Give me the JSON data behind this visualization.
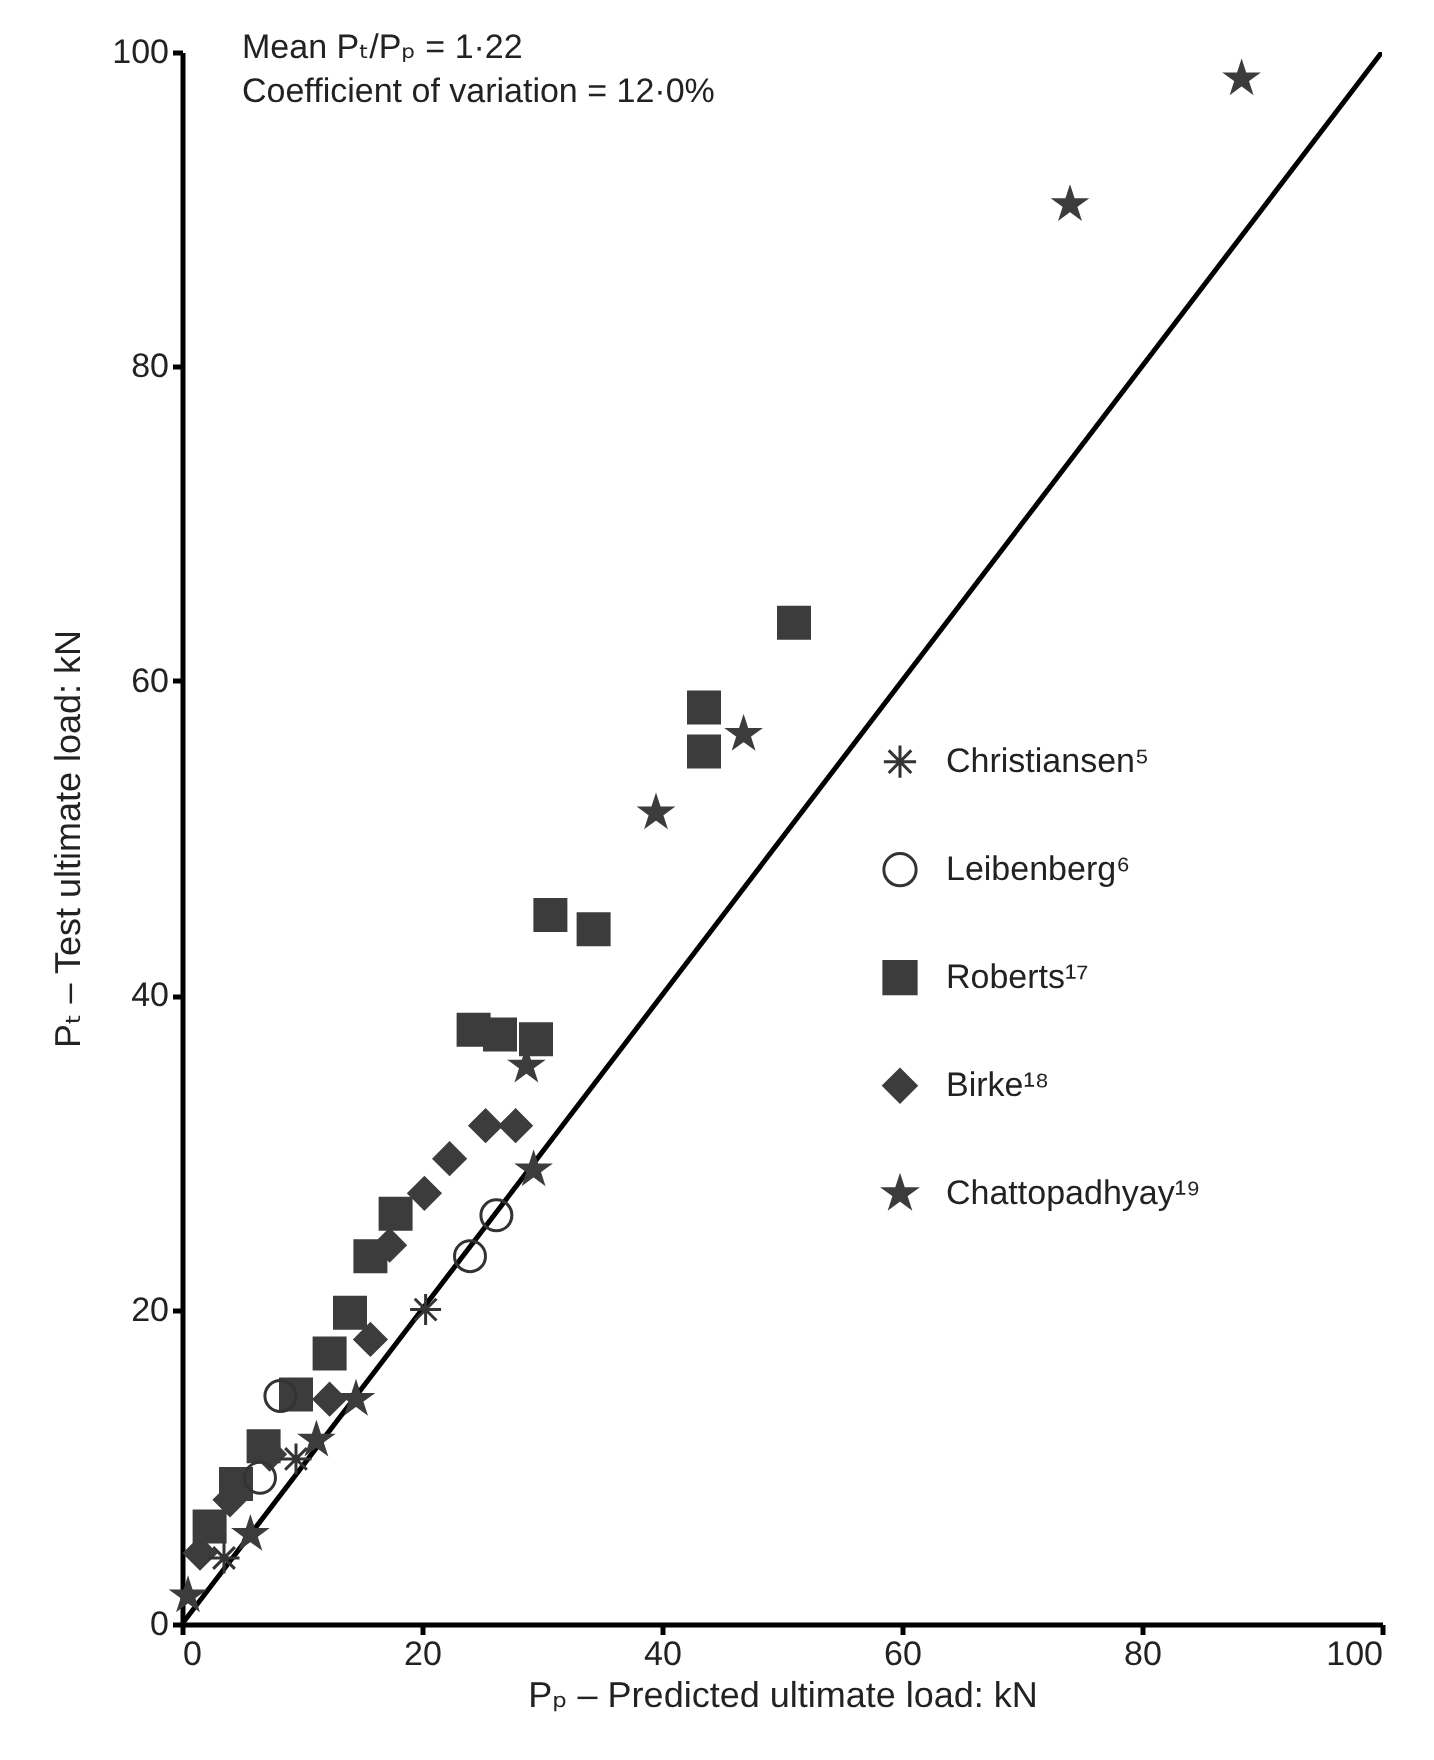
{
  "chart_data": {
    "type": "scatter",
    "xlabel": "Pₚ – Predicted ultimate load: kN",
    "ylabel": "Pₜ – Test ultimate load: kN",
    "annotations": [
      "Mean Pₜ/Pₚ = 1·22",
      "Coefficient of variation = 12·0%"
    ],
    "xlim": [
      0,
      100
    ],
    "ylim": [
      0,
      100
    ],
    "xticks": [
      0,
      20,
      40,
      60,
      80,
      100
    ],
    "yticks": [
      0,
      20,
      40,
      60,
      80,
      100
    ],
    "legend": "right",
    "series": [
      {
        "name": "Christiansen⁵",
        "color": "#333333",
        "marker": "cross",
        "x": [
          20.3,
          9.5,
          3.5
        ],
        "values": [
          20.0,
          10.5,
          4.2
        ]
      },
      {
        "name": "Leibenberg⁶",
        "color": "#333333",
        "marker": "circle",
        "x": [
          26.2,
          24.0,
          8.2,
          6.5
        ],
        "values": [
          26.0,
          23.4,
          14.5,
          9.3
        ]
      },
      {
        "name": "Roberts¹⁷",
        "color": "#3c3c3c",
        "marker": "square",
        "x": [
          51.0,
          43.5,
          43.5,
          30.7,
          34.3,
          24.3,
          26.5,
          29.5,
          17.8,
          15.7,
          14.0,
          12.3,
          9.5,
          6.8,
          4.5,
          2.3
        ],
        "values": [
          63.7,
          58.3,
          55.5,
          45.1,
          44.2,
          37.8,
          37.5,
          37.2,
          26.1,
          23.4,
          19.8,
          17.2,
          14.6,
          11.3,
          8.9,
          6.2
        ]
      },
      {
        "name": "Birke¹⁸",
        "color": "#3c3c3c",
        "marker": "diamond",
        "x": [
          25.3,
          27.8,
          22.3,
          20.2,
          17.3,
          15.7,
          12.3,
          7.3,
          4.0,
          1.5
        ],
        "values": [
          31.7,
          31.7,
          29.6,
          27.4,
          24.1,
          18.1,
          14.3,
          10.8,
          7.9,
          4.5
        ]
      },
      {
        "name": "Chattopadhyay¹⁹",
        "color": "#3c3c3c",
        "marker": "star",
        "x": [
          88.3,
          74.0,
          46.8,
          39.5,
          28.7,
          29.3,
          14.5,
          11.2,
          5.7,
          0.5
        ],
        "values": [
          98.3,
          90.3,
          56.6,
          51.6,
          35.5,
          28.9,
          14.3,
          11.7,
          5.7,
          1.8
        ]
      },
      {
        "type": "line",
        "color": "#000000",
        "marker": "none",
        "x": [
          0,
          100
        ],
        "values": [
          0,
          100
        ]
      }
    ]
  }
}
